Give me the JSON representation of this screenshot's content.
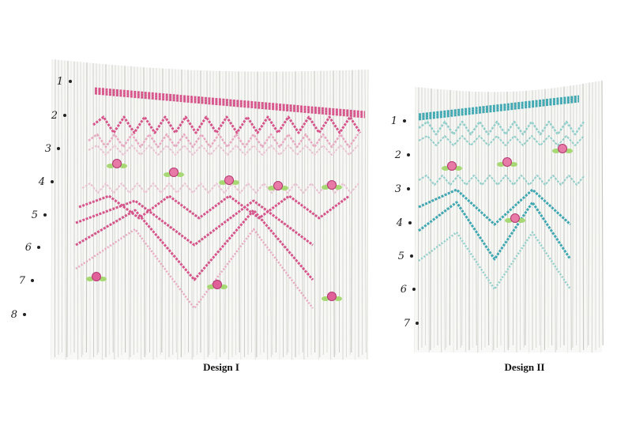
{
  "designs": [
    {
      "caption": "Design I",
      "rows": [
        1,
        2,
        3,
        4,
        5,
        6,
        7,
        8
      ]
    },
    {
      "caption": "Design II",
      "rows": [
        1,
        2,
        3,
        4,
        5,
        6,
        7
      ]
    }
  ]
}
